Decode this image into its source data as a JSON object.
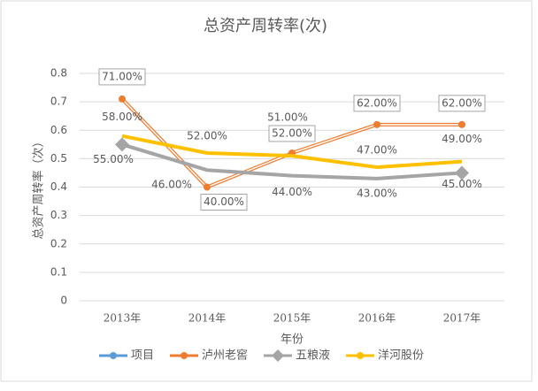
{
  "chart_data": {
    "type": "line",
    "title": "总资产周转率(次)",
    "y_label": "总资产周转率（次）",
    "x_label": "年份",
    "categories": [
      "2013年",
      "2014年",
      "2015年",
      "2016年",
      "2017年"
    ],
    "series": [
      {
        "name": "项目",
        "color": "#5b9bd5",
        "values": [
          null,
          null,
          null,
          null,
          null
        ]
      },
      {
        "name": "泸州老窖",
        "color": "#ed7d31",
        "values": [
          0.71,
          0.4,
          0.52,
          0.62,
          0.62
        ],
        "value_labels": [
          "71.00%",
          "40.00%",
          "52.00%",
          "62.00%",
          "62.00%"
        ]
      },
      {
        "name": "五粮液",
        "color": "#a5a5a5",
        "values": [
          0.55,
          0.46,
          0.44,
          0.43,
          0.45
        ],
        "value_labels": [
          "55.00%",
          "46.00%",
          "44.00%",
          "43.00%",
          "45.00%"
        ]
      },
      {
        "name": "洋河股份",
        "color": "#ffc000",
        "values": [
          0.58,
          0.52,
          0.51,
          0.47,
          0.49
        ],
        "value_labels": [
          "58.00%",
          "52.00%",
          "51.00%",
          "47.00%",
          "49.00%"
        ]
      }
    ],
    "ylim": [
      0,
      0.8
    ],
    "yticks": [
      0,
      0.1,
      0.2,
      0.3,
      0.4,
      0.5,
      0.6,
      0.7,
      0.8
    ],
    "grid": true,
    "legend": "bottom"
  }
}
